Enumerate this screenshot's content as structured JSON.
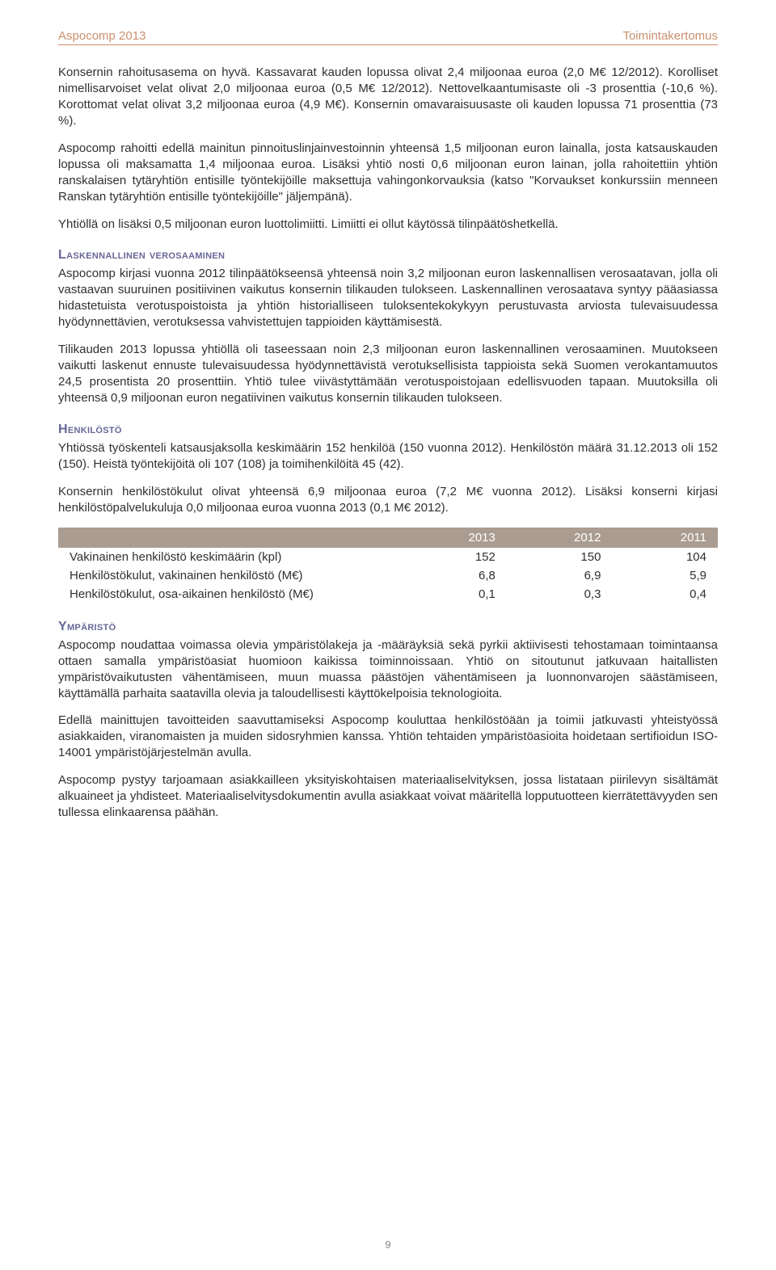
{
  "header": {
    "left": "Aspocomp 2013",
    "right": "Toimintakertomus"
  },
  "paragraphs": {
    "p1": "Konsernin rahoitusasema on hyvä. Kassavarat kauden lopussa olivat 2,4 miljoonaa euroa (2,0 M€ 12/2012). Korolliset nimellisarvoiset velat olivat 2,0 miljoonaa euroa (0,5 M€ 12/2012). Nettovelkaantumisaste oli -3 prosenttia (-10,6 %). Korottomat velat olivat 3,2 miljoonaa euroa (4,9 M€). Konsernin omavaraisuusaste oli kauden lopussa 71 prosenttia (73 %).",
    "p2": "Aspocomp rahoitti edellä mainitun pinnoituslinjainvestoinnin yhteensä 1,5 miljoonan euron lainalla, josta katsauskauden lopussa oli maksamatta 1,4 miljoonaa euroa. Lisäksi yhtiö nosti 0,6 miljoonan euron lainan, jolla rahoitettiin yhtiön ranskalaisen tytäryhtiön entisille työntekijöille maksettuja vahingonkorvauksia (katso \"Korvaukset konkurssiin menneen Ranskan tytäryhtiön entisille työntekijöille\" jäljempänä).",
    "p3": "Yhtiöllä on lisäksi 0,5 miljoonan euron luottolimiitti. Limiitti ei ollut käytössä tilinpäätöshetkellä.",
    "p4": "Aspocomp kirjasi vuonna 2012 tilinpäätökseensä yhteensä noin 3,2 miljoonan euron laskennallisen verosaatavan, jolla oli vastaavan suuruinen positiivinen vaikutus konsernin tilikauden tulokseen. Laskennallinen verosaatava syntyy pääasiassa hidastetuista verotuspoistoista ja yhtiön historialliseen tuloksentekokykyyn perustuvasta arviosta tulevaisuudessa hyödynnettävien, verotuksessa vahvistettujen tappioiden käyttämisestä.",
    "p5": "Tilikauden 2013 lopussa yhtiöllä oli taseessaan noin 2,3 miljoonan euron laskennallinen verosaaminen. Muutokseen vaikutti laskenut ennuste tulevaisuudessa hyödynnettävistä verotuksellisista tappioista sekä Suomen verokantamuutos 24,5 prosentista 20 prosenttiin. Yhtiö tulee viivästyttämään verotuspoistojaan edellisvuoden tapaan. Muutoksilla oli yhteensä 0,9 miljoonan euron negatiivinen vaikutus konsernin tilikauden tulokseen.",
    "p6": "Yhtiössä työskenteli katsausjaksolla keskimäärin 152 henkilöä (150 vuonna 2012). Henkilöstön määrä 31.12.2013 oli 152 (150). Heistä työntekijöitä oli 107 (108) ja toimihenkilöitä 45 (42).",
    "p7": "Konsernin henkilöstökulut olivat yhteensä 6,9 miljoonaa euroa (7,2 M€ vuonna 2012). Lisäksi konserni kirjasi henkilöstöpalvelukuluja 0,0 miljoonaa euroa vuonna 2013 (0,1 M€ 2012).",
    "p8": "Aspocomp noudattaa voimassa olevia ympäristölakeja ja -määräyksiä sekä pyrkii aktiivisesti tehostamaan toimintaansa ottaen samalla ympäristöasiat huomioon kaikissa toiminnoissaan. Yhtiö on sitoutunut jatkuvaan haitallisten ympäristövaikutusten vähentämiseen, muun muassa päästöjen vähentämiseen ja luonnonvarojen säästämiseen, käyttämällä parhaita saatavilla olevia ja taloudellisesti käyttökelpoisia teknologioita.",
    "p9": "Edellä mainittujen tavoitteiden saavuttamiseksi Aspocomp kouluttaa henkilöstöään ja toimii jatkuvasti yhteistyössä asiakkaiden, viranomaisten ja muiden sidosryhmien kanssa. Yhtiön tehtaiden ympäristöasioita hoidetaan sertifioidun ISO-14001 ympäristöjärjestelmän avulla.",
    "p10": "Aspocomp pystyy tarjoamaan asiakkailleen yksityiskohtaisen materiaaliselvityksen, jossa listataan piirilevyn sisältämät alkuaineet ja yhdisteet. Materiaaliselvitysdokumentin avulla asiakkaat voivat määritellä lopputuotteen kierrätettävyyden sen tullessa elinkaarensa päähän."
  },
  "headings": {
    "h1": "Laskennallinen verosaaminen",
    "h2": "Henkilöstö",
    "h3": "Ympäristö"
  },
  "table": {
    "columns": [
      "",
      "2013",
      "2012",
      "2011"
    ],
    "rows": [
      [
        "Vakinainen henkilöstö keskimäärin (kpl)",
        "152",
        "150",
        "104"
      ],
      [
        "Henkilöstökulut, vakinainen henkilöstö (M€)",
        "6,8",
        "6,9",
        "5,9"
      ],
      [
        "Henkilöstökulut, osa-aikainen henkilöstö (M€)",
        "0,1",
        "0,3",
        "0,4"
      ]
    ],
    "header_bg": "#aa9c90",
    "header_fg": "#ffffff",
    "col_widths": [
      "52%",
      "16%",
      "16%",
      "16%"
    ]
  },
  "page_number": "9",
  "colors": {
    "accent": "#c98f6e",
    "heading": "#676798",
    "text": "#303030",
    "table_header_bg": "#aa9c90"
  }
}
